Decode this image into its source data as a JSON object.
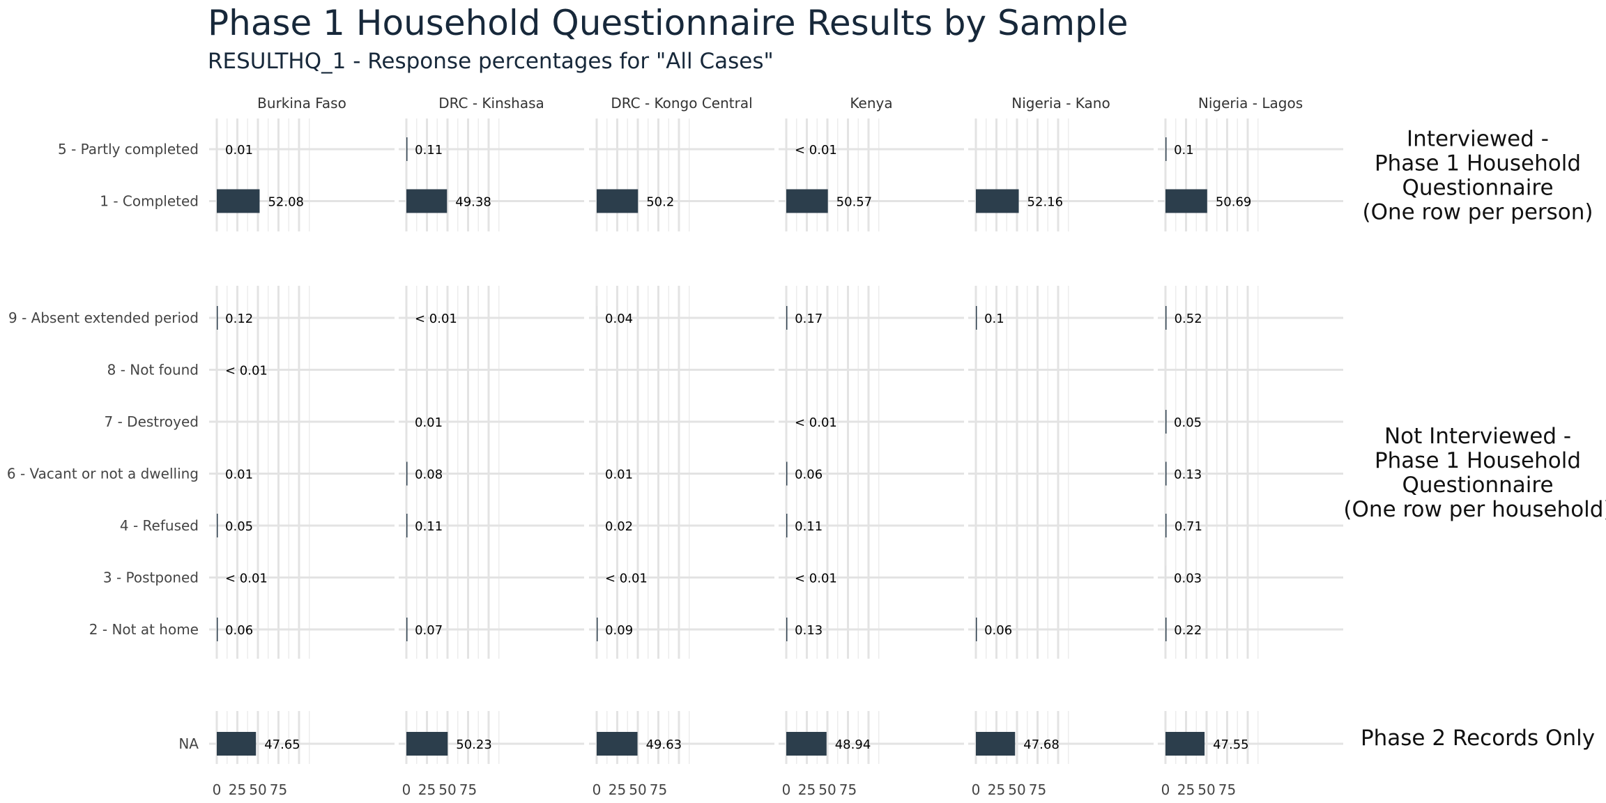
{
  "chart_data": {
    "type": "bar",
    "title": "Phase 1 Household Questionnaire Results by Sample",
    "subtitle": "RESULTHQ_1 - Response percentages for \"All Cases\"",
    "facets": [
      "Burkina Faso",
      "DRC - Kinshasa",
      "DRC - Kongo Central",
      "Kenya",
      "Nigeria - Kano",
      "Nigeria - Lagos"
    ],
    "xlim": [
      0,
      100
    ],
    "x_ticks": [
      0,
      25,
      50,
      75
    ],
    "grid": true,
    "bar_color": "#2c3e4c",
    "groups": [
      {
        "label": "Interviewed -\nPhase 1 Household\nQuestionnaire\n(One row per person)",
        "rows": [
          {
            "category": "5 - Partly completed",
            "values": [
              0.01,
              0.11,
              null,
              0.005,
              null,
              0.1
            ],
            "labels": [
              "0.01",
              "0.11",
              "",
              "< 0.01",
              "",
              "0.1"
            ]
          },
          {
            "category": "1 - Completed",
            "values": [
              52.08,
              49.38,
              50.2,
              50.57,
              52.16,
              50.69
            ],
            "labels": [
              "52.08",
              "49.38",
              "50.2",
              "50.57",
              "52.16",
              "50.69"
            ]
          }
        ]
      },
      {
        "label": "Not Interviewed -\nPhase 1 Household\nQuestionnaire\n(One row per household)",
        "rows": [
          {
            "category": "9 - Absent extended period",
            "values": [
              0.12,
              0.005,
              0.04,
              0.17,
              0.1,
              0.52
            ],
            "labels": [
              "0.12",
              "< 0.01",
              "0.04",
              "0.17",
              "0.1",
              "0.52"
            ]
          },
          {
            "category": "8 - Not found",
            "values": [
              0.005,
              null,
              null,
              null,
              null,
              null
            ],
            "labels": [
              "< 0.01",
              "",
              "",
              "",
              "",
              ""
            ]
          },
          {
            "category": "7 - Destroyed",
            "values": [
              null,
              0.01,
              null,
              0.005,
              null,
              0.05
            ],
            "labels": [
              "",
              "0.01",
              "",
              "< 0.01",
              "",
              "0.05"
            ]
          },
          {
            "category": "6 - Vacant or not a dwelling",
            "values": [
              0.01,
              0.08,
              0.01,
              0.06,
              null,
              0.13
            ],
            "labels": [
              "0.01",
              "0.08",
              "0.01",
              "0.06",
              "",
              "0.13"
            ]
          },
          {
            "category": "4 - Refused",
            "values": [
              0.05,
              0.11,
              0.02,
              0.11,
              null,
              0.71
            ],
            "labels": [
              "0.05",
              "0.11",
              "0.02",
              "0.11",
              "",
              "0.71"
            ]
          },
          {
            "category": "3 - Postponed",
            "values": [
              0.005,
              null,
              0.005,
              0.005,
              null,
              0.03
            ],
            "labels": [
              "< 0.01",
              "",
              "< 0.01",
              "< 0.01",
              "",
              "0.03"
            ]
          },
          {
            "category": "2 - Not at home",
            "values": [
              0.06,
              0.07,
              0.09,
              0.13,
              0.06,
              0.22
            ],
            "labels": [
              "0.06",
              "0.07",
              "0.09",
              "0.13",
              "0.06",
              "0.22"
            ]
          }
        ]
      },
      {
        "label": "Phase 2 Records Only",
        "rows": [
          {
            "category": "NA",
            "values": [
              47.65,
              50.23,
              49.63,
              48.94,
              47.68,
              47.55
            ],
            "labels": [
              "47.65",
              "50.23",
              "49.63",
              "48.94",
              "47.68",
              "47.55"
            ]
          }
        ]
      }
    ]
  }
}
